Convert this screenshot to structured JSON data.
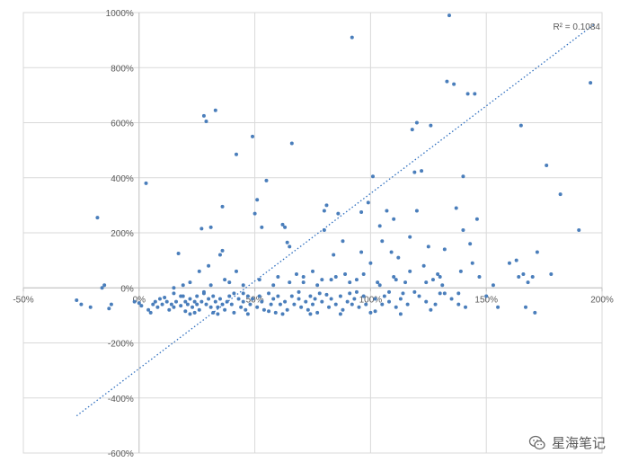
{
  "chart_data": {
    "type": "scatter",
    "xlim": [
      -0.5,
      2.0
    ],
    "ylim": [
      -6.0,
      10.0
    ],
    "x_ticks": [
      -0.5,
      0,
      0.5,
      1.0,
      1.5,
      2.0
    ],
    "y_ticks": [
      -6,
      -4,
      -2,
      0,
      2,
      4,
      6,
      8,
      10
    ],
    "x_tick_labels": [
      "-50%",
      "0%",
      "50%",
      "100%",
      "150%",
      "200%"
    ],
    "y_tick_labels": [
      "-600%",
      "-400%",
      "-200%",
      "0%",
      "200%",
      "400%",
      "600%",
      "800%",
      "1000%"
    ],
    "grid": true,
    "trendline": {
      "style": "dotted",
      "x_range": [
        -0.27,
        1.97
      ],
      "y_range": [
        -4.65,
        9.6
      ]
    },
    "r_squared": "R² = 0.1084",
    "colors": {
      "points": "#4a7ebb",
      "trend": "#2f6fbf",
      "grid": "#d9d9d9"
    },
    "points": [
      [
        -0.27,
        -0.45
      ],
      [
        -0.25,
        -0.6
      ],
      [
        -0.21,
        -0.7
      ],
      [
        -0.18,
        2.55
      ],
      [
        -0.16,
        0.0
      ],
      [
        -0.15,
        0.1
      ],
      [
        -0.13,
        -0.75
      ],
      [
        -0.12,
        -0.6
      ],
      [
        -0.02,
        -0.5
      ],
      [
        0.0,
        -0.55
      ],
      [
        0.01,
        -0.65
      ],
      [
        0.03,
        3.8
      ],
      [
        0.04,
        -0.8
      ],
      [
        0.05,
        -0.9
      ],
      [
        0.06,
        -0.6
      ],
      [
        0.07,
        -0.5
      ],
      [
        0.08,
        -0.7
      ],
      [
        0.09,
        -0.4
      ],
      [
        0.1,
        -0.6
      ],
      [
        0.11,
        -0.35
      ],
      [
        0.12,
        -0.5
      ],
      [
        0.13,
        -0.8
      ],
      [
        0.14,
        -0.6
      ],
      [
        0.15,
        -0.7
      ],
      [
        0.15,
        0.0
      ],
      [
        0.16,
        -0.5
      ],
      [
        0.17,
        1.25
      ],
      [
        0.18,
        -0.65
      ],
      [
        0.19,
        0.1
      ],
      [
        0.19,
        -0.3
      ],
      [
        0.2,
        -0.5
      ],
      [
        0.2,
        -0.85
      ],
      [
        0.21,
        -0.6
      ],
      [
        0.22,
        -0.4
      ],
      [
        0.22,
        0.2
      ],
      [
        0.23,
        -0.7
      ],
      [
        0.24,
        -0.5
      ],
      [
        0.24,
        -0.9
      ],
      [
        0.25,
        -0.3
      ],
      [
        0.25,
        -0.6
      ],
      [
        0.26,
        0.6
      ],
      [
        0.26,
        -0.8
      ],
      [
        0.27,
        2.15
      ],
      [
        0.27,
        -0.5
      ],
      [
        0.28,
        6.25
      ],
      [
        0.28,
        -0.2
      ],
      [
        0.29,
        6.05
      ],
      [
        0.29,
        -0.6
      ],
      [
        0.3,
        0.8
      ],
      [
        0.3,
        -0.4
      ],
      [
        0.31,
        -0.7
      ],
      [
        0.31,
        2.2
      ],
      [
        0.32,
        -0.9
      ],
      [
        0.32,
        -0.3
      ],
      [
        0.33,
        6.45
      ],
      [
        0.33,
        -0.5
      ],
      [
        0.34,
        -0.7
      ],
      [
        0.35,
        -0.4
      ],
      [
        0.35,
        1.2
      ],
      [
        0.36,
        2.95
      ],
      [
        0.36,
        1.35
      ],
      [
        0.36,
        -0.6
      ],
      [
        0.37,
        -0.8
      ],
      [
        0.37,
        0.3
      ],
      [
        0.38,
        -0.5
      ],
      [
        0.39,
        -0.3
      ],
      [
        0.4,
        -0.6
      ],
      [
        0.41,
        -0.9
      ],
      [
        0.42,
        0.6
      ],
      [
        0.42,
        4.85
      ],
      [
        0.43,
        -0.4
      ],
      [
        0.44,
        -0.7
      ],
      [
        0.45,
        -0.2
      ],
      [
        0.45,
        -0.5
      ],
      [
        0.46,
        -0.8
      ],
      [
        0.47,
        -0.3
      ],
      [
        0.48,
        -0.6
      ],
      [
        0.49,
        5.5
      ],
      [
        0.49,
        -0.4
      ],
      [
        0.5,
        2.7
      ],
      [
        0.51,
        -0.7
      ],
      [
        0.51,
        3.2
      ],
      [
        0.52,
        -0.3
      ],
      [
        0.53,
        2.2
      ],
      [
        0.53,
        -0.5
      ],
      [
        0.54,
        -0.8
      ],
      [
        0.55,
        3.9
      ],
      [
        0.56,
        -0.2
      ],
      [
        0.57,
        -0.6
      ],
      [
        0.58,
        -0.4
      ],
      [
        0.59,
        -0.9
      ],
      [
        0.6,
        -0.3
      ],
      [
        0.6,
        0.4
      ],
      [
        0.61,
        -0.6
      ],
      [
        0.62,
        2.3
      ],
      [
        0.63,
        -0.5
      ],
      [
        0.63,
        2.2
      ],
      [
        0.64,
        1.65
      ],
      [
        0.64,
        -0.8
      ],
      [
        0.65,
        1.5
      ],
      [
        0.66,
        5.25
      ],
      [
        0.66,
        -0.3
      ],
      [
        0.67,
        -0.6
      ],
      [
        0.68,
        0.5
      ],
      [
        0.69,
        -0.4
      ],
      [
        0.7,
        -0.7
      ],
      [
        0.71,
        0.2
      ],
      [
        0.72,
        -0.5
      ],
      [
        0.73,
        -0.8
      ],
      [
        0.74,
        -0.3
      ],
      [
        0.75,
        -0.6
      ],
      [
        0.75,
        0.6
      ],
      [
        0.76,
        -0.4
      ],
      [
        0.77,
        -0.9
      ],
      [
        0.78,
        -0.2
      ],
      [
        0.79,
        -0.5
      ],
      [
        0.79,
        0.3
      ],
      [
        0.8,
        2.1
      ],
      [
        0.8,
        2.8
      ],
      [
        0.81,
        3.0
      ],
      [
        0.82,
        -0.7
      ],
      [
        0.83,
        -0.4
      ],
      [
        0.84,
        1.2
      ],
      [
        0.85,
        -0.6
      ],
      [
        0.85,
        0.4
      ],
      [
        0.86,
        2.7
      ],
      [
        0.87,
        -0.3
      ],
      [
        0.88,
        1.7
      ],
      [
        0.88,
        -0.8
      ],
      [
        0.89,
        0.5
      ],
      [
        0.9,
        -0.5
      ],
      [
        0.91,
        -0.2
      ],
      [
        0.92,
        9.1
      ],
      [
        0.92,
        -0.6
      ],
      [
        0.93,
        -0.4
      ],
      [
        0.94,
        0.3
      ],
      [
        0.95,
        -0.7
      ],
      [
        0.96,
        1.3
      ],
      [
        0.96,
        2.75
      ],
      [
        0.97,
        -0.3
      ],
      [
        0.98,
        -0.6
      ],
      [
        0.99,
        3.1
      ],
      [
        1.0,
        -0.9
      ],
      [
        1.0,
        0.9
      ],
      [
        1.01,
        4.05
      ],
      [
        1.02,
        -0.4
      ],
      [
        1.03,
        0.2
      ],
      [
        1.04,
        2.25
      ],
      [
        1.05,
        -0.6
      ],
      [
        1.05,
        1.7
      ],
      [
        1.06,
        -0.3
      ],
      [
        1.07,
        2.8
      ],
      [
        1.08,
        -0.5
      ],
      [
        1.09,
        1.3
      ],
      [
        1.1,
        0.4
      ],
      [
        1.1,
        2.5
      ],
      [
        1.11,
        -0.7
      ],
      [
        1.12,
        1.1
      ],
      [
        1.13,
        -0.4
      ],
      [
        1.14,
        -0.2
      ],
      [
        1.15,
        0.2
      ],
      [
        1.16,
        -0.6
      ],
      [
        1.17,
        1.85
      ],
      [
        1.18,
        5.75
      ],
      [
        1.19,
        4.2
      ],
      [
        1.2,
        6.0
      ],
      [
        1.2,
        2.8
      ],
      [
        1.21,
        -0.3
      ],
      [
        1.22,
        4.25
      ],
      [
        1.23,
        0.8
      ],
      [
        1.24,
        -0.5
      ],
      [
        1.25,
        1.5
      ],
      [
        1.26,
        5.9
      ],
      [
        1.27,
        0.3
      ],
      [
        1.28,
        -0.6
      ],
      [
        1.29,
        0.5
      ],
      [
        1.3,
        -0.2
      ],
      [
        1.31,
        0.1
      ],
      [
        1.32,
        1.4
      ],
      [
        1.33,
        7.5
      ],
      [
        1.34,
        9.9
      ],
      [
        1.35,
        -0.4
      ],
      [
        1.36,
        7.4
      ],
      [
        1.37,
        2.9
      ],
      [
        1.38,
        -0.2
      ],
      [
        1.39,
        0.6
      ],
      [
        1.4,
        2.1
      ],
      [
        1.4,
        4.05
      ],
      [
        1.41,
        -0.7
      ],
      [
        1.42,
        7.05
      ],
      [
        1.43,
        1.6
      ],
      [
        1.44,
        0.9
      ],
      [
        1.45,
        7.05
      ],
      [
        1.46,
        2.5
      ],
      [
        1.47,
        0.4
      ],
      [
        1.5,
        -0.3
      ],
      [
        1.53,
        0.1
      ],
      [
        1.55,
        -0.7
      ],
      [
        1.6,
        0.9
      ],
      [
        1.63,
        1.0
      ],
      [
        1.64,
        0.4
      ],
      [
        1.65,
        5.9
      ],
      [
        1.66,
        0.5
      ],
      [
        1.67,
        -0.7
      ],
      [
        1.68,
        0.2
      ],
      [
        1.7,
        0.4
      ],
      [
        1.71,
        -0.9
      ],
      [
        1.72,
        1.3
      ],
      [
        1.76,
        4.45
      ],
      [
        1.78,
        0.5
      ],
      [
        1.82,
        3.4
      ],
      [
        1.9,
        2.1
      ],
      [
        1.95,
        7.45
      ],
      [
        0.22,
        -0.95
      ],
      [
        0.28,
        -0.15
      ],
      [
        0.34,
        -0.95
      ],
      [
        0.41,
        -0.2
      ],
      [
        0.47,
        -0.95
      ],
      [
        0.56,
        -0.85
      ],
      [
        0.62,
        -0.95
      ],
      [
        0.69,
        -0.15
      ],
      [
        0.74,
        -0.95
      ],
      [
        0.81,
        -0.25
      ],
      [
        0.87,
        -0.95
      ],
      [
        0.94,
        -0.15
      ],
      [
        1.02,
        -0.85
      ],
      [
        1.08,
        -0.15
      ],
      [
        1.13,
        -0.95
      ],
      [
        1.19,
        -0.15
      ],
      [
        1.26,
        -0.8
      ],
      [
        1.32,
        -0.2
      ],
      [
        1.38,
        -0.6
      ],
      [
        0.15,
        -0.2
      ],
      [
        0.18,
        -0.3
      ],
      [
        0.31,
        0.1
      ],
      [
        0.39,
        0.2
      ],
      [
        0.45,
        0.1
      ],
      [
        0.52,
        0.3
      ],
      [
        0.58,
        0.1
      ],
      [
        0.65,
        0.2
      ],
      [
        0.71,
        0.4
      ],
      [
        0.77,
        0.1
      ],
      [
        0.83,
        0.3
      ],
      [
        0.91,
        0.2
      ],
      [
        0.97,
        0.5
      ],
      [
        1.04,
        0.1
      ],
      [
        1.11,
        0.3
      ],
      [
        1.17,
        0.6
      ],
      [
        1.24,
        0.2
      ],
      [
        1.3,
        0.4
      ]
    ]
  },
  "watermark": {
    "text": "星海笔记",
    "icon": "wechat-icon"
  }
}
